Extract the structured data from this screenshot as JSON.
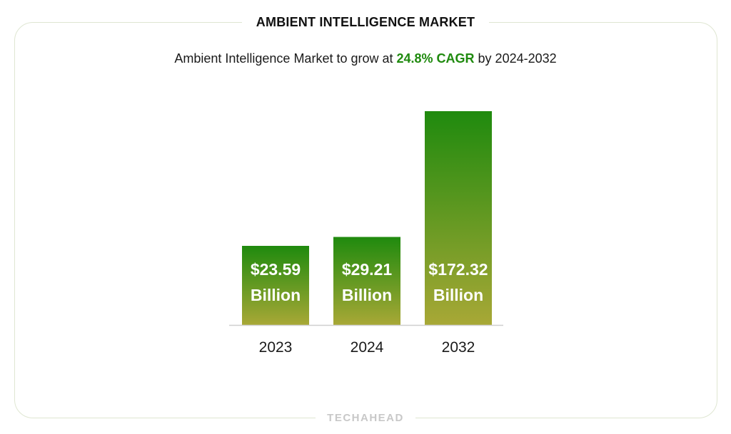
{
  "header": {
    "title": "AMBIENT INTELLIGENCE MARKET",
    "subtitle_prefix": "Ambient Intelligence Market to grow at ",
    "subtitle_highlight": "24.8% CAGR",
    "subtitle_suffix": " by 2024-2032"
  },
  "footer": {
    "brand": "TECHAHEAD"
  },
  "colors": {
    "bar_top": "#1f8a0e",
    "bar_bottom": "#a8a836",
    "highlight": "#1f8a0e",
    "baseline": "#cfcfcf"
  },
  "chart_data": {
    "type": "bar",
    "categories": [
      "2023",
      "2024",
      "2032"
    ],
    "values": [
      23.59,
      29.21,
      172.32
    ],
    "value_labels": [
      [
        "$23.59",
        "Billion"
      ],
      [
        "$29.21",
        "Billion"
      ],
      [
        "$172.32",
        "Billion"
      ]
    ],
    "grid": false,
    "legend": "none"
  }
}
